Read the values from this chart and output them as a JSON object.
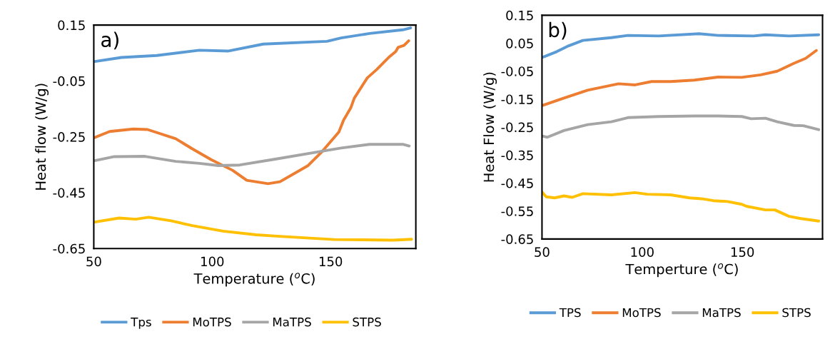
{
  "chart_data": [
    {
      "type": "line",
      "xlabel": "Temperature ($^{o}$C)",
      "ylabel": "Heat flow (W/g)",
      "annotations": [
        "a)"
      ],
      "xlim": [
        50,
        186
      ],
      "xticks": [
        50,
        100,
        150
      ],
      "ylim": [
        -0.65,
        0.15
      ],
      "yticks": [
        -0.65,
        -0.45,
        -0.25,
        -0.05,
        0.15
      ],
      "grid": false,
      "legend": "bottom",
      "marker": "none",
      "line_style": "solid",
      "series": [
        {
          "name": "Tps",
          "color": "#5b9bd5",
          "x": [
            50,
            61.7,
            76.6,
            94.6,
            106.6,
            121.6,
            148.5,
            154.5,
            166.5,
            180.5,
            183.8
          ],
          "values": [
            0.019,
            0.034,
            0.041,
            0.06,
            0.057,
            0.082,
            0.092,
            0.104,
            0.12,
            0.133,
            0.14
          ]
        },
        {
          "name": "MoTPS",
          "color": "#ed7d31",
          "x": [
            50,
            56.7,
            66.7,
            72.7,
            84.6,
            91.6,
            99.6,
            108.6,
            114.6,
            123.6,
            128.6,
            140.5,
            146.5,
            153.5,
            155.5,
            158.5,
            160,
            165.5,
            169.5,
            174.5,
            177.5,
            178.5,
            181,
            183
          ],
          "values": [
            -0.254,
            -0.231,
            -0.222,
            -0.224,
            -0.257,
            -0.293,
            -0.332,
            -0.37,
            -0.406,
            -0.418,
            -0.411,
            -0.353,
            -0.302,
            -0.233,
            -0.19,
            -0.147,
            -0.112,
            -0.039,
            -0.009,
            0.034,
            0.055,
            0.07,
            0.077,
            0.094
          ]
        },
        {
          "name": "MaTPS",
          "color": "#a5a5a5",
          "x": [
            50,
            58.7,
            71.6,
            84.6,
            94.6,
            102.6,
            111.6,
            126.6,
            145.5,
            154.5,
            166.5,
            180.5,
            183.2
          ],
          "values": [
            -0.336,
            -0.321,
            -0.32,
            -0.338,
            -0.345,
            -0.353,
            -0.351,
            -0.33,
            -0.303,
            -0.29,
            -0.277,
            -0.277,
            -0.283
          ]
        },
        {
          "name": "STPS",
          "color": "#ffc000",
          "x": [
            50,
            60.7,
            67.7,
            73.2,
            82.6,
            91.6,
            104.6,
            118.6,
            129.6,
            151.5,
            176.4,
            184.2
          ],
          "values": [
            -0.556,
            -0.541,
            -0.545,
            -0.538,
            -0.551,
            -0.568,
            -0.588,
            -0.601,
            -0.607,
            -0.618,
            -0.62,
            -0.617
          ]
        }
      ]
    },
    {
      "type": "line",
      "xlabel": "Temperture ($^{o}$C)",
      "ylabel": "Heat Flow (W/g)",
      "annotations": [
        "b)"
      ],
      "xlim": [
        50,
        190
      ],
      "xticks": [
        50,
        100,
        150
      ],
      "ylim": [
        -0.65,
        0.15
      ],
      "yticks": [
        -0.65,
        -0.55,
        -0.45,
        -0.35,
        -0.25,
        -0.15,
        -0.05,
        0.05,
        0.15
      ],
      "grid": false,
      "legend": "bottom",
      "marker": "none",
      "line_style": "solid",
      "series": [
        {
          "name": "TPS",
          "color": "#5b9bd5",
          "x": [
            50,
            57.4,
            63.4,
            70.4,
            84.6,
            92.9,
            108.3,
            128.4,
            137.8,
            155.6,
            161.5,
            173.3,
            188.1
          ],
          "values": [
            -0.001,
            0.02,
            0.041,
            0.06,
            0.07,
            0.078,
            0.076,
            0.084,
            0.078,
            0.076,
            0.08,
            0.076,
            0.08
          ]
        },
        {
          "name": "MoTPS",
          "color": "#ed7d31",
          "x": [
            50,
            61.0,
            72.8,
            88.2,
            96.5,
            104.7,
            114.2,
            126.0,
            137.8,
            149.7,
            159.1,
            167.4,
            175.7,
            181.6,
            186.9
          ],
          "values": [
            -0.173,
            -0.146,
            -0.118,
            -0.095,
            -0.099,
            -0.087,
            -0.087,
            -0.082,
            -0.071,
            -0.072,
            -0.063,
            -0.05,
            -0.022,
            -0.004,
            0.024
          ]
        },
        {
          "name": "MaTPS",
          "color": "#a5a5a5",
          "x": [
            50,
            52.7,
            61.0,
            72.8,
            84.6,
            92.9,
            108.3,
            126.0,
            137.8,
            149.7,
            154.4,
            161.5,
            167.4,
            175.7,
            180.4,
            188.1
          ],
          "values": [
            -0.282,
            -0.286,
            -0.262,
            -0.241,
            -0.231,
            -0.216,
            -0.212,
            -0.21,
            -0.21,
            -0.212,
            -0.22,
            -0.218,
            -0.231,
            -0.244,
            -0.245,
            -0.259
          ]
        },
        {
          "name": "STPS",
          "color": "#ffc000",
          "x": [
            50,
            52.1,
            56.3,
            61.0,
            65.1,
            70.4,
            84.6,
            96.5,
            102.4,
            114.2,
            123.6,
            129.6,
            135.5,
            142.6,
            149.7,
            152.0,
            161.5,
            166.2,
            173.3,
            179.2,
            188.1
          ],
          "values": [
            -0.482,
            -0.499,
            -0.503,
            -0.496,
            -0.501,
            -0.488,
            -0.492,
            -0.484,
            -0.49,
            -0.492,
            -0.503,
            -0.506,
            -0.513,
            -0.516,
            -0.526,
            -0.533,
            -0.546,
            -0.546,
            -0.569,
            -0.577,
            -0.586
          ]
        }
      ]
    }
  ]
}
